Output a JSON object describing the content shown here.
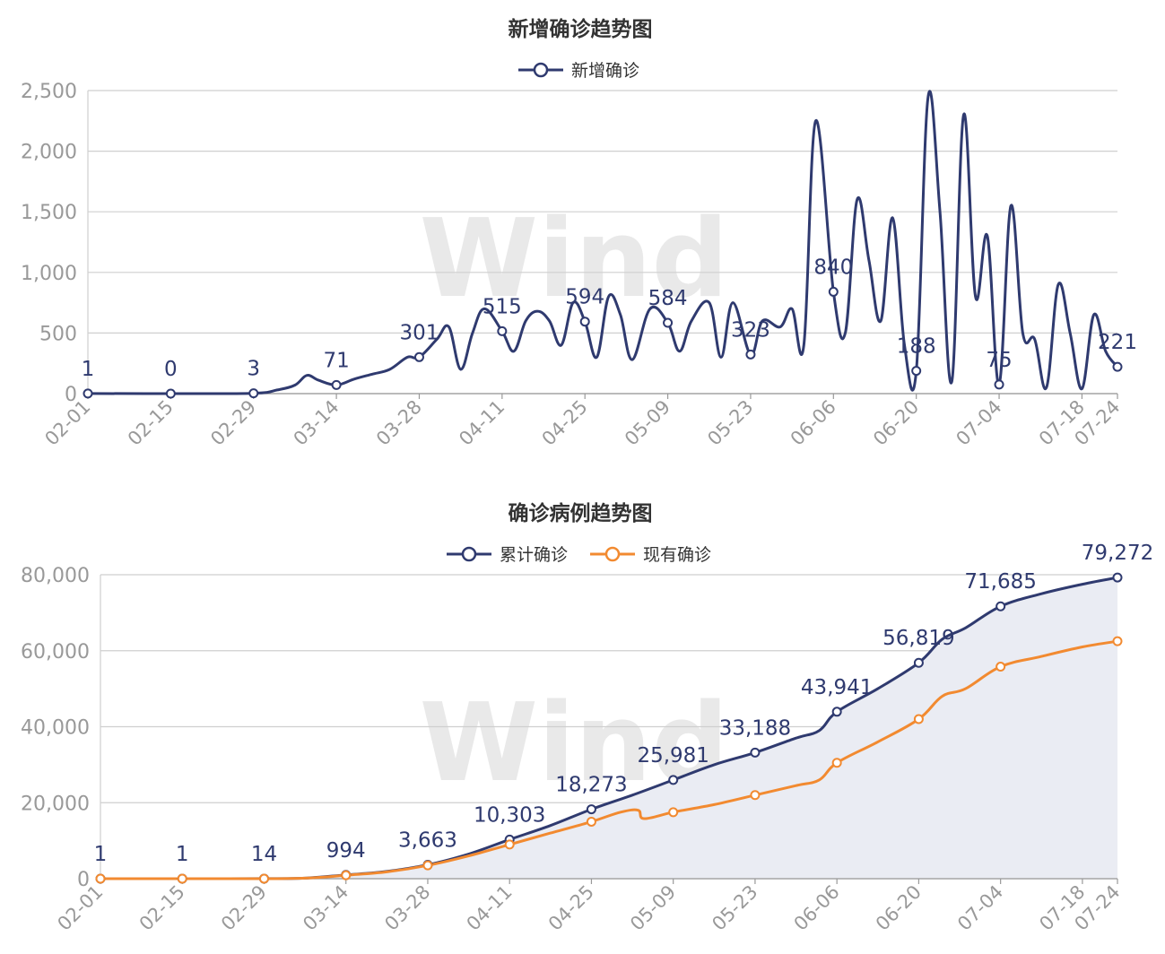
{
  "chart_data": [
    {
      "type": "line",
      "title": "新增确诊趋势图",
      "watermark": "Wind",
      "x_ticks": [
        "02-01",
        "02-15",
        "02-29",
        "03-14",
        "03-28",
        "04-11",
        "04-25",
        "05-09",
        "05-23",
        "06-06",
        "06-20",
        "07-04",
        "07-18",
        "07-24"
      ],
      "ylim": [
        0,
        2500
      ],
      "y_ticks": [
        "0",
        "500",
        "1,000",
        "1,500",
        "2,000",
        "2,500"
      ],
      "grid": true,
      "legend_position": "top-center",
      "series": [
        {
          "name": "新增确诊",
          "color": "#2f3a6f",
          "points": [
            [
              "02-01",
              1
            ],
            [
              "02-15",
              0
            ],
            [
              "02-29",
              3
            ],
            [
              "03-04",
              30
            ],
            [
              "03-07",
              70
            ],
            [
              "03-09",
              150
            ],
            [
              "03-11",
              110
            ],
            [
              "03-14",
              71
            ],
            [
              "03-17",
              120
            ],
            [
              "03-20",
              160
            ],
            [
              "03-23",
              200
            ],
            [
              "03-26",
              300
            ],
            [
              "03-28",
              301
            ],
            [
              "03-31",
              450
            ],
            [
              "04-02",
              550
            ],
            [
              "04-04",
              200
            ],
            [
              "04-06",
              500
            ],
            [
              "04-08",
              700
            ],
            [
              "04-11",
              515
            ],
            [
              "04-13",
              350
            ],
            [
              "04-15",
              600
            ],
            [
              "04-17",
              680
            ],
            [
              "04-19",
              600
            ],
            [
              "04-21",
              400
            ],
            [
              "04-23",
              750
            ],
            [
              "04-25",
              594
            ],
            [
              "04-27",
              300
            ],
            [
              "04-29",
              800
            ],
            [
              "05-01",
              650
            ],
            [
              "05-03",
              280
            ],
            [
              "05-06",
              700
            ],
            [
              "05-09",
              584
            ],
            [
              "05-11",
              350
            ],
            [
              "05-13",
              600
            ],
            [
              "05-16",
              750
            ],
            [
              "05-18",
              300
            ],
            [
              "05-20",
              750
            ],
            [
              "05-23",
              323
            ],
            [
              "05-25",
              600
            ],
            [
              "05-28",
              550
            ],
            [
              "05-30",
              700
            ],
            [
              "06-01",
              400
            ],
            [
              "06-03",
              2250
            ],
            [
              "06-06",
              840
            ],
            [
              "06-08",
              500
            ],
            [
              "06-10",
              1600
            ],
            [
              "06-12",
              1100
            ],
            [
              "06-14",
              600
            ],
            [
              "06-16",
              1450
            ],
            [
              "06-18",
              400
            ],
            [
              "06-20",
              188
            ],
            [
              "06-22",
              2450
            ],
            [
              "06-24",
              1500
            ],
            [
              "06-26",
              100
            ],
            [
              "06-28",
              2300
            ],
            [
              "06-30",
              800
            ],
            [
              "07-02",
              1300
            ],
            [
              "07-04",
              75
            ],
            [
              "07-06",
              1550
            ],
            [
              "07-08",
              500
            ],
            [
              "07-10",
              450
            ],
            [
              "07-12",
              50
            ],
            [
              "07-14",
              900
            ],
            [
              "07-16",
              500
            ],
            [
              "07-18",
              40
            ],
            [
              "07-20",
              650
            ],
            [
              "07-22",
              350
            ],
            [
              "07-24",
              221
            ]
          ]
        }
      ],
      "data_labels": [
        {
          "x": "02-01",
          "value": "1"
        },
        {
          "x": "02-15",
          "value": "0"
        },
        {
          "x": "02-29",
          "value": "3"
        },
        {
          "x": "03-14",
          "value": "71"
        },
        {
          "x": "03-28",
          "value": "301"
        },
        {
          "x": "04-11",
          "value": "515"
        },
        {
          "x": "04-25",
          "value": "594"
        },
        {
          "x": "05-09",
          "value": "584"
        },
        {
          "x": "05-23",
          "value": "323"
        },
        {
          "x": "06-06",
          "value": "840"
        },
        {
          "x": "06-20",
          "value": "188"
        },
        {
          "x": "07-04",
          "value": "75"
        },
        {
          "x": "07-24",
          "value": "221"
        }
      ]
    },
    {
      "type": "area",
      "title": "确诊病例趋势图",
      "watermark": "Wind",
      "x_ticks": [
        "02-01",
        "02-15",
        "02-29",
        "03-14",
        "03-28",
        "04-11",
        "04-25",
        "05-09",
        "05-23",
        "06-06",
        "06-20",
        "07-04",
        "07-18",
        "07-24"
      ],
      "ylim": [
        0,
        80000
      ],
      "y_ticks": [
        "0",
        "20,000",
        "40,000",
        "60,000",
        "80,000"
      ],
      "grid": true,
      "legend_position": "top-center",
      "series": [
        {
          "name": "累计确诊",
          "color": "#2f3a6f",
          "fill": "#eaecf3",
          "points": [
            [
              "02-01",
              1
            ],
            [
              "02-15",
              1
            ],
            [
              "02-29",
              14
            ],
            [
              "03-07",
              150
            ],
            [
              "03-14",
              994
            ],
            [
              "03-21",
              1900
            ],
            [
              "03-28",
              3663
            ],
            [
              "04-04",
              6500
            ],
            [
              "04-11",
              10303
            ],
            [
              "04-18",
              14000
            ],
            [
              "04-25",
              18273
            ],
            [
              "05-02",
              22000
            ],
            [
              "05-09",
              25981
            ],
            [
              "05-16",
              30000
            ],
            [
              "05-23",
              33188
            ],
            [
              "05-30",
              37000
            ],
            [
              "06-03",
              39000
            ],
            [
              "06-06",
              43941
            ],
            [
              "06-13",
              50000
            ],
            [
              "06-20",
              56819
            ],
            [
              "06-24",
              63000
            ],
            [
              "06-28",
              66000
            ],
            [
              "07-04",
              71685
            ],
            [
              "07-11",
              75000
            ],
            [
              "07-18",
              77500
            ],
            [
              "07-24",
              79272
            ]
          ]
        },
        {
          "name": "现有确诊",
          "color": "#f28a30",
          "points": [
            [
              "02-01",
              0
            ],
            [
              "02-15",
              0
            ],
            [
              "02-29",
              10
            ],
            [
              "03-07",
              130
            ],
            [
              "03-14",
              900
            ],
            [
              "03-21",
              1800
            ],
            [
              "03-28",
              3500
            ],
            [
              "04-04",
              6000
            ],
            [
              "04-11",
              9000
            ],
            [
              "04-18",
              12000
            ],
            [
              "04-25",
              15000
            ],
            [
              "04-30",
              17500
            ],
            [
              "05-03",
              18000
            ],
            [
              "05-04",
              15800
            ],
            [
              "05-09",
              17500
            ],
            [
              "05-16",
              19500
            ],
            [
              "05-23",
              22000
            ],
            [
              "05-30",
              24500
            ],
            [
              "06-03",
              26000
            ],
            [
              "06-06",
              30500
            ],
            [
              "06-13",
              36000
            ],
            [
              "06-20",
              42000
            ],
            [
              "06-24",
              48000
            ],
            [
              "06-28",
              50000
            ],
            [
              "07-04",
              55800
            ],
            [
              "07-11",
              58500
            ],
            [
              "07-18",
              61000
            ],
            [
              "07-24",
              62500
            ]
          ]
        }
      ],
      "data_labels": [
        {
          "x": "02-01",
          "value": "1"
        },
        {
          "x": "02-15",
          "value": "1"
        },
        {
          "x": "02-29",
          "value": "14"
        },
        {
          "x": "03-14",
          "value": "994"
        },
        {
          "x": "03-28",
          "value": "3,663"
        },
        {
          "x": "04-11",
          "value": "10,303"
        },
        {
          "x": "04-25",
          "value": "18,273"
        },
        {
          "x": "05-09",
          "value": "25,981"
        },
        {
          "x": "05-23",
          "value": "33,188"
        },
        {
          "x": "06-06",
          "value": "43,941"
        },
        {
          "x": "06-20",
          "value": "56,819"
        },
        {
          "x": "07-04",
          "value": "71,685"
        },
        {
          "x": "07-24",
          "value": "79,272"
        }
      ]
    }
  ]
}
